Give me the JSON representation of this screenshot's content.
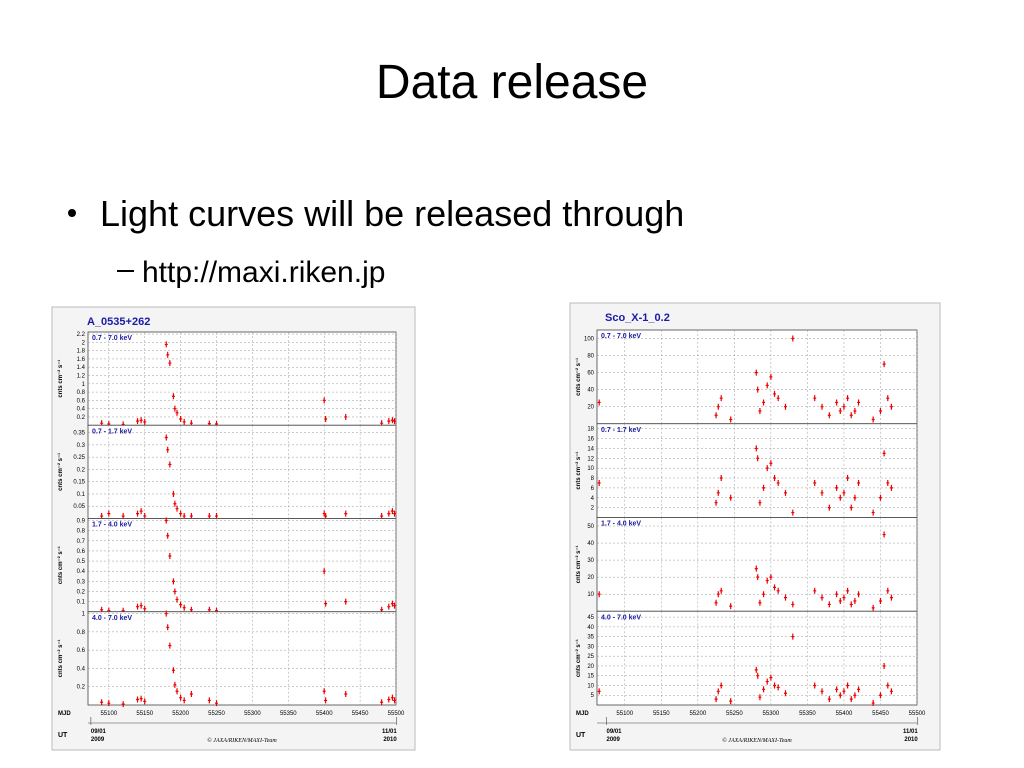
{
  "slide": {
    "title": "Data release",
    "bullets": [
      {
        "text": "Light curves will be released through",
        "sub": [
          "http://maxi.riken.jp"
        ]
      }
    ]
  },
  "figures": [
    {
      "title": "A_0535+262",
      "y_label": "cnts cm⁻² s⁻¹",
      "x_label": "MJD",
      "ut_label": "UT",
      "credit": "© JAXA/RIKEN/MAXI-Team",
      "xlim": [
        55071,
        55500
      ],
      "xticks": [
        55100,
        55150,
        55200,
        55250,
        55300,
        55350,
        55400,
        55450,
        55500
      ],
      "ut_ticks": [
        {
          "value": 55075,
          "date": "09/01",
          "year": "2009"
        },
        {
          "value": 55501,
          "date": "11/01",
          "year": "2010"
        }
      ],
      "x": [
        55090,
        55100,
        55120,
        55140,
        55145,
        55150,
        55180,
        55182,
        55185,
        55190,
        55192,
        55195,
        55200,
        55205,
        55215,
        55240,
        55250,
        55400,
        55402,
        55430,
        55480,
        55490,
        55495,
        55498
      ],
      "panels": [
        {
          "label": "0.7 - 7.0 keV",
          "ylim": [
            0,
            2.25
          ],
          "yticks": [
            0.2,
            0.4,
            0.6,
            0.8,
            1,
            1.2,
            1.4,
            1.6,
            1.8,
            2,
            2.2
          ],
          "y": [
            0.05,
            0.03,
            0.02,
            0.1,
            0.12,
            0.08,
            1.95,
            1.7,
            1.5,
            0.7,
            0.4,
            0.3,
            0.15,
            0.08,
            0.05,
            0.04,
            0.03,
            0.6,
            0.15,
            0.2,
            0.05,
            0.1,
            0.12,
            0.1
          ]
        },
        {
          "label": "0.7 - 1.7 keV",
          "ylim": [
            0,
            0.38
          ],
          "yticks": [
            0.05,
            0.1,
            0.15,
            0.2,
            0.25,
            0.3,
            0.35
          ],
          "y": [
            0.01,
            0.02,
            0.01,
            0.02,
            0.03,
            0.01,
            0.33,
            0.28,
            0.22,
            0.1,
            0.06,
            0.04,
            0.02,
            0.01,
            0.01,
            0.01,
            0.01,
            0.02,
            0.01,
            0.02,
            0.01,
            0.02,
            0.03,
            0.02
          ]
        },
        {
          "label": "1.7 - 4.0 keV",
          "ylim": [
            0,
            0.92
          ],
          "yticks": [
            0.1,
            0.2,
            0.3,
            0.4,
            0.5,
            0.6,
            0.7,
            0.8,
            0.9
          ],
          "y": [
            0.02,
            0.01,
            0.01,
            0.05,
            0.06,
            0.03,
            0.9,
            0.75,
            0.55,
            0.3,
            0.2,
            0.12,
            0.07,
            0.04,
            0.02,
            0.02,
            0.01,
            0.4,
            0.08,
            0.1,
            0.02,
            0.05,
            0.08,
            0.06
          ]
        },
        {
          "label": "4.0 - 7.0 keV",
          "ylim": [
            0,
            1.02
          ],
          "yticks": [
            0.2,
            0.4,
            0.6,
            0.8,
            1
          ],
          "y": [
            0.03,
            0.02,
            0.01,
            0.06,
            0.07,
            0.04,
            1,
            0.85,
            0.65,
            0.38,
            0.22,
            0.15,
            0.08,
            0.05,
            0.12,
            0.05,
            0.02,
            0.15,
            0.05,
            0.12,
            0.03,
            0.06,
            0.08,
            0.05
          ]
        }
      ]
    },
    {
      "title": "Sco_X-1_0.2",
      "y_label": "cnts cm⁻² s⁻¹",
      "x_label": "MJD",
      "ut_label": "UT",
      "credit": "© JAXA/RIKEN/MAXI-Team",
      "xlim": [
        55062,
        55500
      ],
      "xticks": [
        55100,
        55150,
        55200,
        55250,
        55300,
        55350,
        55400,
        55450,
        55500
      ],
      "ut_ticks": [
        {
          "value": 55075,
          "date": "09/01",
          "year": "2009"
        },
        {
          "value": 55501,
          "date": "11/01",
          "year": "2010"
        }
      ],
      "x": [
        55065,
        55225,
        55228,
        55232,
        55245,
        55280,
        55282,
        55285,
        55290,
        55295,
        55300,
        55305,
        55310,
        55320,
        55330,
        55360,
        55370,
        55380,
        55390,
        55395,
        55400,
        55405,
        55410,
        55415,
        55420,
        55440,
        55450,
        55455,
        55460,
        55465
      ],
      "panels": [
        {
          "label": "0.7 - 7.0 keV",
          "ylim": [
            0,
            110
          ],
          "yticks": [
            20,
            40,
            60,
            80,
            100
          ],
          "y": [
            25,
            10,
            20,
            30,
            5,
            60,
            40,
            15,
            25,
            45,
            55,
            35,
            30,
            20,
            100,
            30,
            20,
            10,
            25,
            15,
            20,
            30,
            10,
            15,
            25,
            5,
            15,
            70,
            30,
            20
          ]
        },
        {
          "label": "0.7 - 1.7 keV",
          "ylim": [
            0,
            19
          ],
          "yticks": [
            2,
            4,
            6,
            8,
            10,
            12,
            14,
            16,
            18
          ],
          "y": [
            7,
            3,
            5,
            8,
            4,
            14,
            12,
            3,
            6,
            10,
            11,
            8,
            7,
            5,
            1,
            7,
            5,
            2,
            6,
            4,
            5,
            8,
            2,
            4,
            7,
            1,
            4,
            13,
            7,
            6
          ]
        },
        {
          "label": "1.7 - 4.0 keV",
          "ylim": [
            0,
            55
          ],
          "yticks": [
            10,
            20,
            30,
            40,
            50
          ],
          "y": [
            10,
            5,
            10,
            12,
            3,
            25,
            20,
            5,
            10,
            18,
            20,
            14,
            12,
            8,
            4,
            12,
            8,
            4,
            10,
            6,
            8,
            12,
            4,
            6,
            10,
            2,
            6,
            45,
            12,
            8
          ]
        },
        {
          "label": "4.0 - 7.0 keV",
          "ylim": [
            0,
            48
          ],
          "yticks": [
            5,
            10,
            15,
            20,
            25,
            30,
            35,
            40,
            45
          ],
          "y": [
            7,
            3,
            7,
            10,
            2,
            18,
            15,
            4,
            8,
            12,
            14,
            10,
            9,
            6,
            35,
            10,
            7,
            3,
            8,
            5,
            7,
            10,
            3,
            5,
            8,
            1,
            5,
            20,
            10,
            7
          ]
        }
      ]
    }
  ]
}
